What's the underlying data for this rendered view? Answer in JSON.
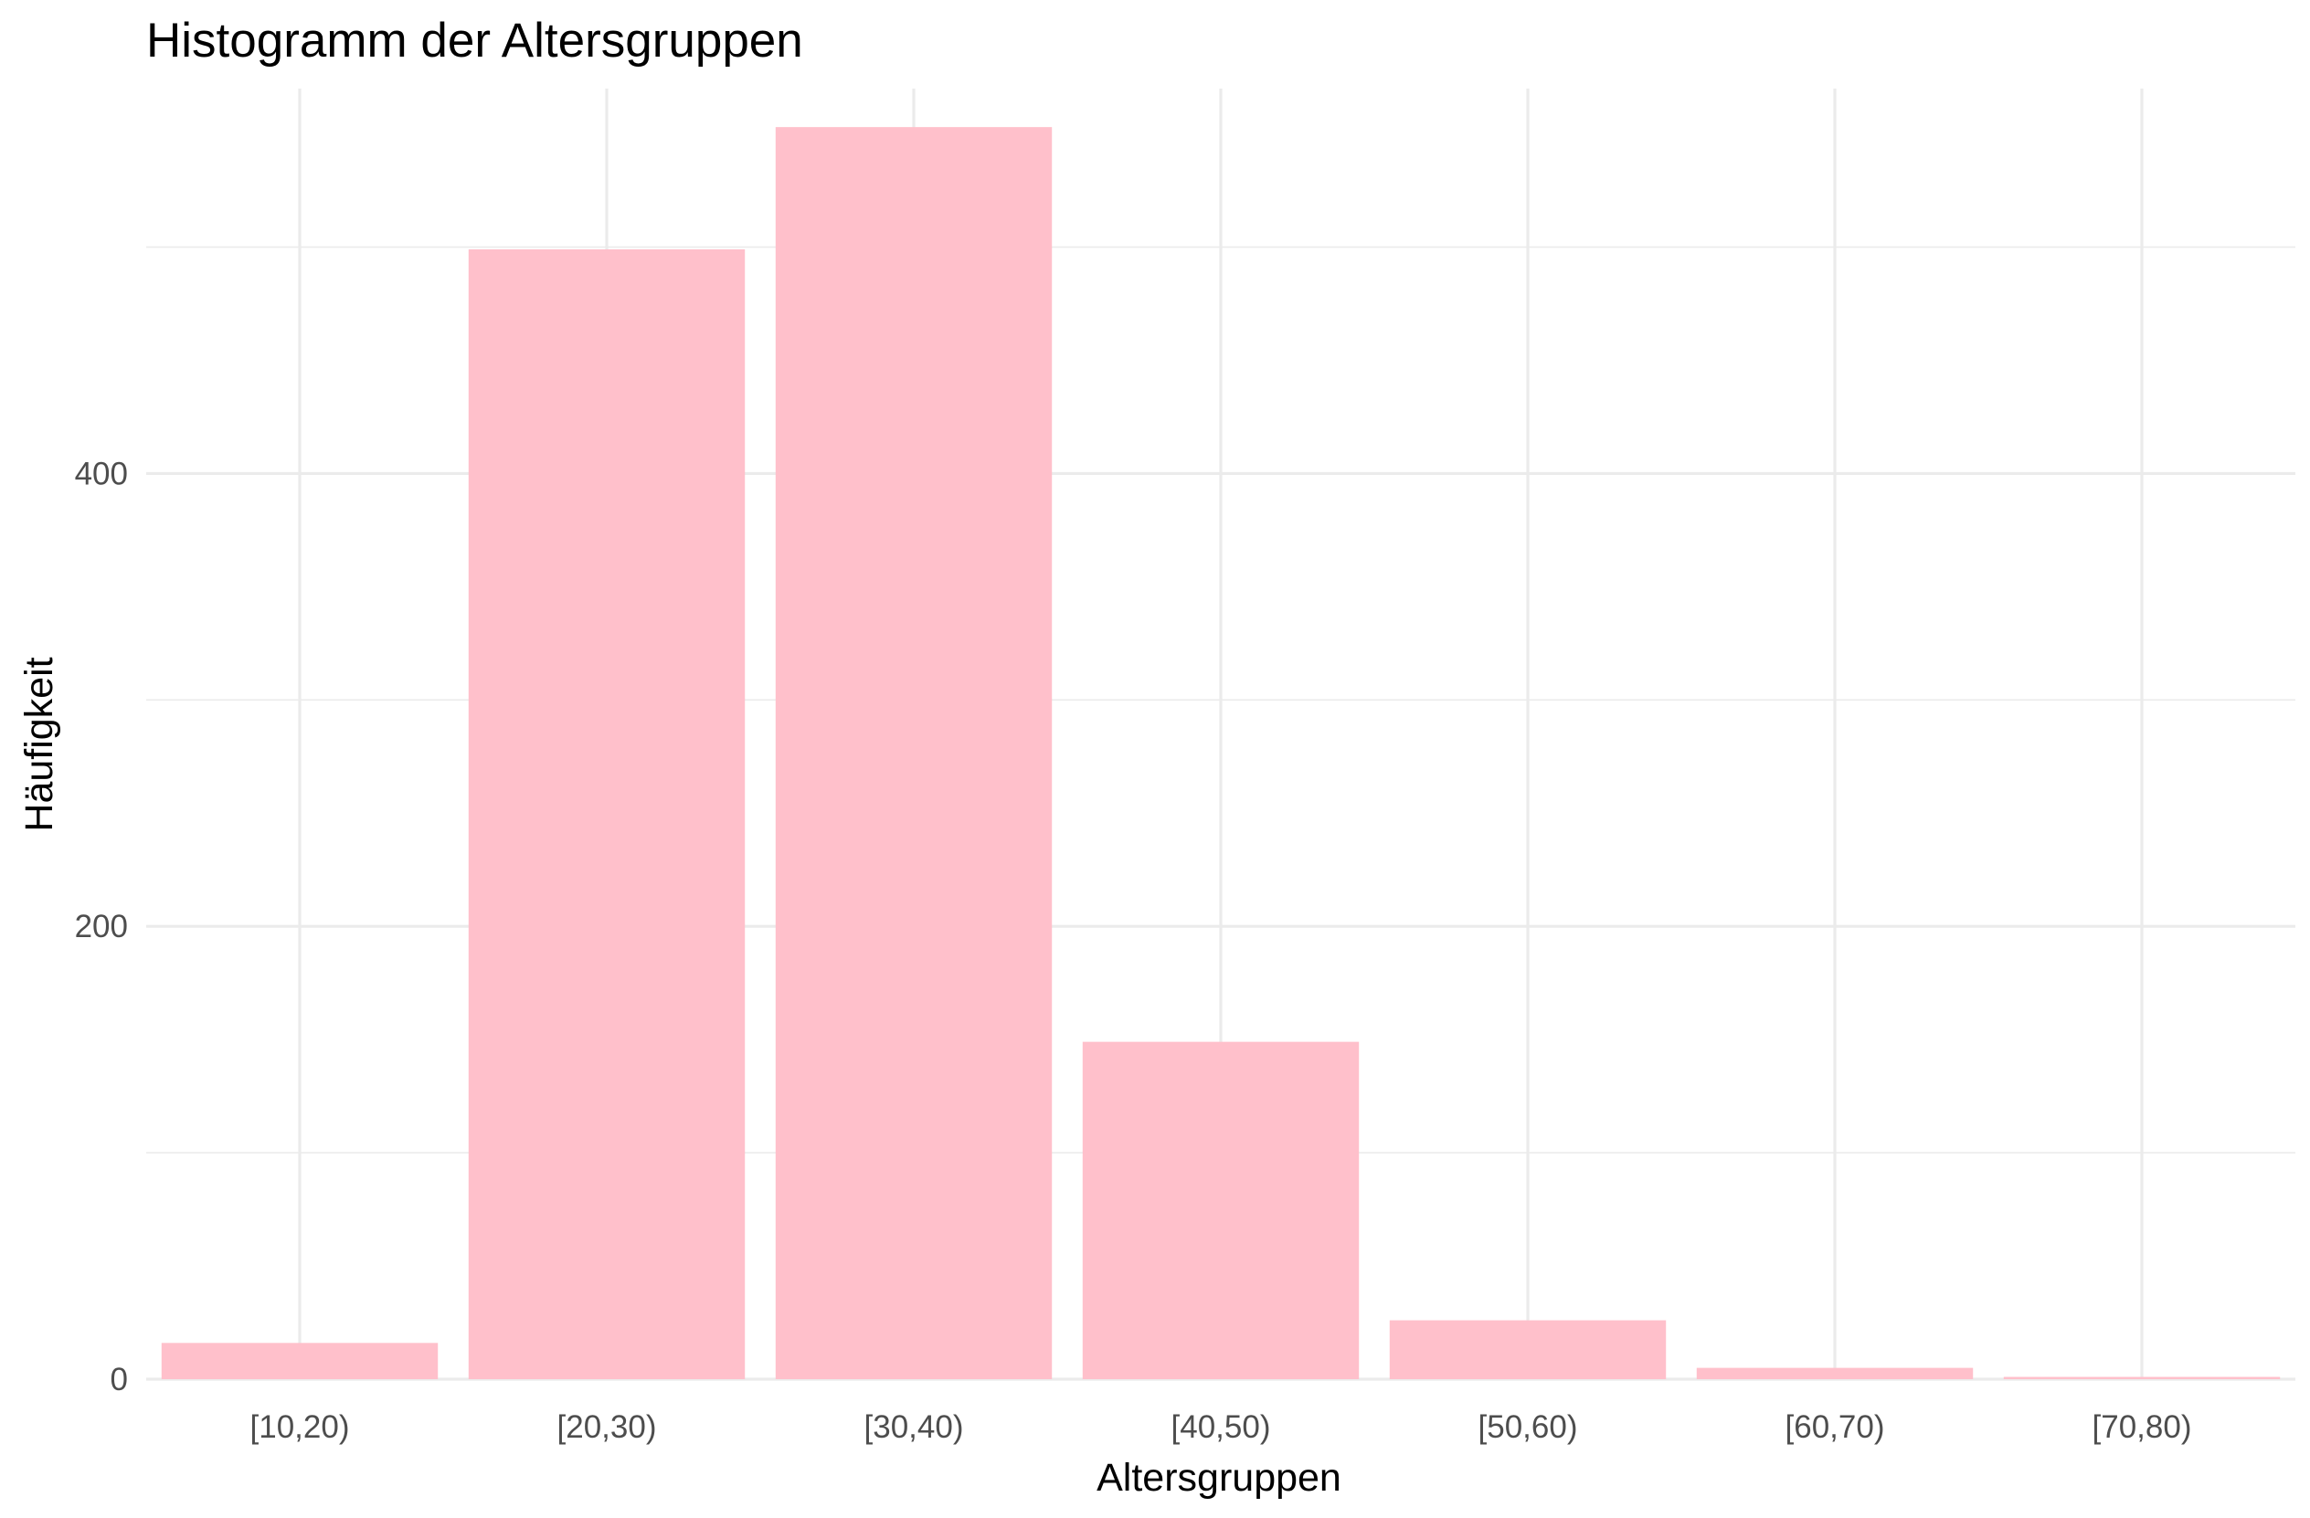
{
  "chart_data": {
    "type": "bar",
    "title": "Histogramm der Altersgruppen",
    "xlabel": "Altersgruppen",
    "ylabel": "Häufigkeit",
    "categories": [
      "[10,20)",
      "[20,30)",
      "[30,40)",
      "[40,50)",
      "[50,60)",
      "[60,70)",
      "[70,80)"
    ],
    "values": [
      16,
      499,
      553,
      149,
      26,
      5,
      1
    ],
    "ylim": [
      0,
      570
    ],
    "yticks": [
      0,
      200,
      400
    ],
    "grid": true,
    "legend": "none",
    "bar_color": "#ffc0cb"
  }
}
